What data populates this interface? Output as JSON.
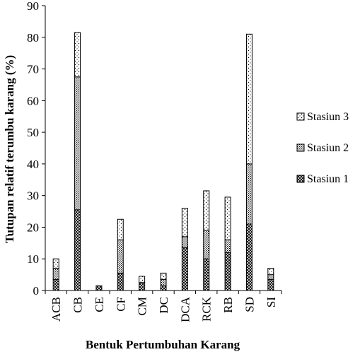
{
  "chart_data": {
    "type": "bar",
    "stacked": true,
    "categories": [
      "ACB",
      "CB",
      "CE",
      "CF",
      "CM",
      "DC",
      "DCA",
      "RCK",
      "RB",
      "SD",
      "SI"
    ],
    "series": [
      {
        "name": "Stasiun 1",
        "values": [
          3.5,
          25.5,
          1.5,
          5.5,
          2.5,
          1.5,
          13.5,
          10,
          12,
          21,
          3.5
        ]
      },
      {
        "name": "Stasiun 2",
        "values": [
          3.5,
          42,
          0,
          10.5,
          0,
          2,
          3.5,
          9,
          4,
          19,
          1.5
        ]
      },
      {
        "name": "Stasiun 3",
        "values": [
          3,
          14,
          0,
          6.5,
          2,
          2,
          9,
          12.5,
          13.5,
          41,
          2
        ]
      }
    ],
    "xlabel": "Bentuk Pertumbuhan Karang",
    "ylabel": "Tutupan relatif terumbu karang (%)",
    "ylim": [
      0,
      90
    ],
    "yticks": [
      0,
      10,
      20,
      30,
      40,
      50,
      60,
      70,
      80,
      90
    ],
    "grid": false,
    "legend_position": "right"
  }
}
